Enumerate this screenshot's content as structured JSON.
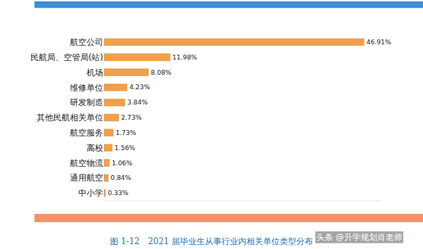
{
  "chart_data": {
    "type": "bar",
    "orientation": "horizontal",
    "title": "图 1-12　2021 届毕业生从事行业内相关单位类型分布",
    "categories": [
      "航空公司",
      "民航局、空管局(站)",
      "机场",
      "维修单位",
      "研发制造",
      "其他民航相关单位",
      "航空服务",
      "高校",
      "航空物流",
      "通用航空",
      "中小学"
    ],
    "values": [
      46.91,
      11.98,
      8.08,
      4.23,
      3.84,
      2.73,
      1.73,
      1.56,
      1.06,
      0.84,
      0.33
    ],
    "value_labels": [
      "46.91%",
      "11.98%",
      "8.08%",
      "4.23%",
      "3.84%",
      "2.73%",
      "1.73%",
      "1.56%",
      "1.06%",
      "0.84%",
      "0.33%"
    ],
    "color": "#f0a04b",
    "xlim": [
      0,
      50
    ],
    "data_labels": true,
    "tick_labels": "y",
    "grid": false,
    "annotations": [
      "头条 @升学规划肖老师"
    ]
  }
}
